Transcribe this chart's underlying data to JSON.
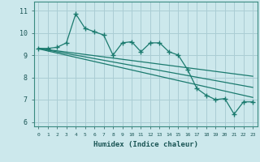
{
  "xlabel": "Humidex (Indice chaleur)",
  "bg_color": "#cce8ec",
  "grid_color": "#aacdd4",
  "line_color": "#1a7a6e",
  "xlim": [
    -0.5,
    23.5
  ],
  "ylim": [
    5.8,
    11.4
  ],
  "xticks": [
    0,
    1,
    2,
    3,
    4,
    5,
    6,
    7,
    8,
    9,
    10,
    11,
    12,
    13,
    14,
    15,
    16,
    17,
    18,
    19,
    20,
    21,
    22,
    23
  ],
  "yticks": [
    6,
    7,
    8,
    9,
    10,
    11
  ],
  "main_x": [
    0,
    1,
    2,
    3,
    4,
    5,
    6,
    7,
    8,
    9,
    10,
    11,
    12,
    13,
    14,
    15,
    16,
    17,
    18,
    19,
    20,
    21,
    22,
    23
  ],
  "main_y": [
    9.3,
    9.3,
    9.35,
    9.55,
    10.85,
    10.2,
    10.05,
    9.9,
    9.0,
    9.55,
    9.6,
    9.15,
    9.55,
    9.55,
    9.15,
    9.0,
    8.35,
    7.5,
    7.2,
    7.0,
    7.05,
    6.35,
    6.9,
    6.9
  ],
  "trend1_x": [
    0,
    23
  ],
  "trend1_y": [
    9.3,
    7.55
  ],
  "trend2_x": [
    0,
    23
  ],
  "trend2_y": [
    9.28,
    7.1
  ],
  "trend3_x": [
    0,
    23
  ],
  "trend3_y": [
    9.3,
    8.05
  ]
}
